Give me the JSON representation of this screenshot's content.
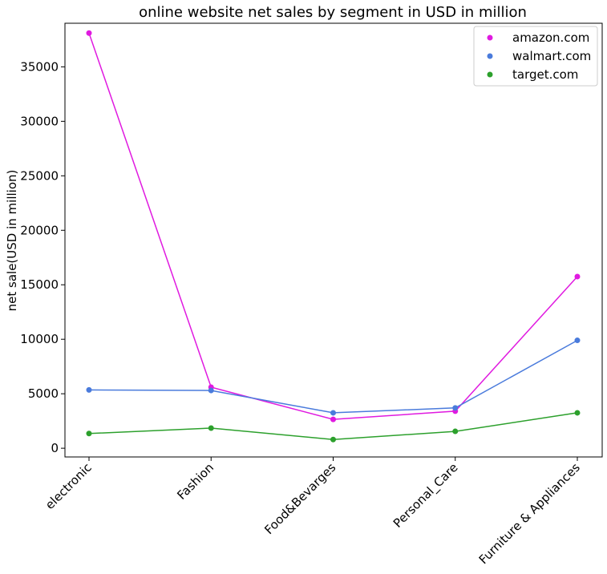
{
  "chart_data": {
    "type": "line",
    "title": "online website net sales by segment in USD in million",
    "xlabel": "",
    "ylabel": "net sale(USD in million)",
    "categories": [
      "electronic",
      "Fashion",
      "Food&Bevarges",
      "Personal_Care",
      "Furniture & Appliances"
    ],
    "ylim": [
      -800,
      39000
    ],
    "yticks": [
      0,
      5000,
      10000,
      15000,
      20000,
      25000,
      30000,
      35000
    ],
    "grid": false,
    "legend_position": "top-right",
    "series": [
      {
        "name": "amazon.com",
        "color": "#e01ae0",
        "values": [
          38100,
          5600,
          2650,
          3400,
          15750
        ]
      },
      {
        "name": "walmart.com",
        "color": "#4a7bdc",
        "values": [
          5350,
          5300,
          3250,
          3700,
          9900
        ]
      },
      {
        "name": "target.com",
        "color": "#2ca02c",
        "values": [
          1350,
          1850,
          800,
          1550,
          3250
        ]
      }
    ]
  }
}
